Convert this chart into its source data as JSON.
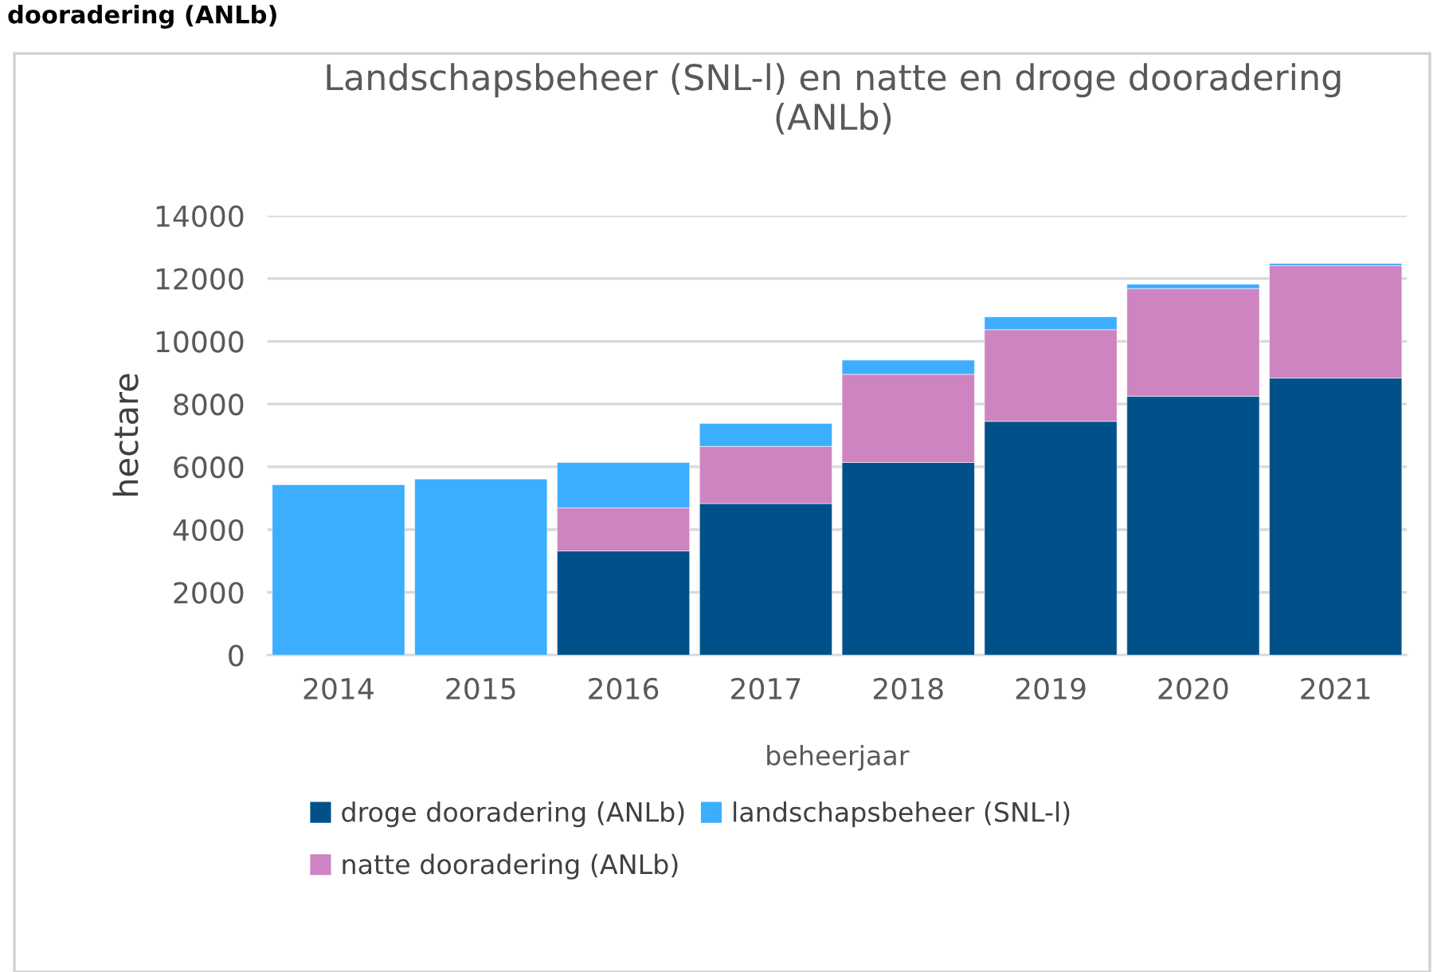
{
  "chart_data": {
    "type": "bar",
    "stacked": true,
    "title": "Landschapsbeheer (SNL-l) en natte en droge dooradering\n(ANLb)",
    "xlabel": "beheerjaar",
    "ylabel": "hectare",
    "annotations": [
      "dooradering (ANLb)"
    ],
    "categories": [
      "2014",
      "2015",
      "2016",
      "2017",
      "2018",
      "2019",
      "2020",
      "2021"
    ],
    "series": [
      {
        "name": "droge dooradering (ANLb)",
        "color": "#00518a",
        "values": [
          null,
          null,
          3320,
          4830,
          6140,
          7450,
          8250,
          8830
        ]
      },
      {
        "name": "natte dooradering (ANLb)",
        "color": "#cd84c0",
        "values": [
          null,
          null,
          1370,
          1820,
          2810,
          2920,
          3430,
          3580
        ]
      },
      {
        "name": "landschapsbeheer (SNL-l)",
        "color": "#3daefe",
        "values": [
          5430,
          5610,
          1450,
          730,
          450,
          410,
          140,
          70
        ]
      }
    ],
    "ylim": [
      0,
      14000
    ],
    "yticks": [
      0,
      2000,
      4000,
      6000,
      8000,
      10000,
      12000,
      14000
    ],
    "grid": "y",
    "legend": "bottom"
  }
}
